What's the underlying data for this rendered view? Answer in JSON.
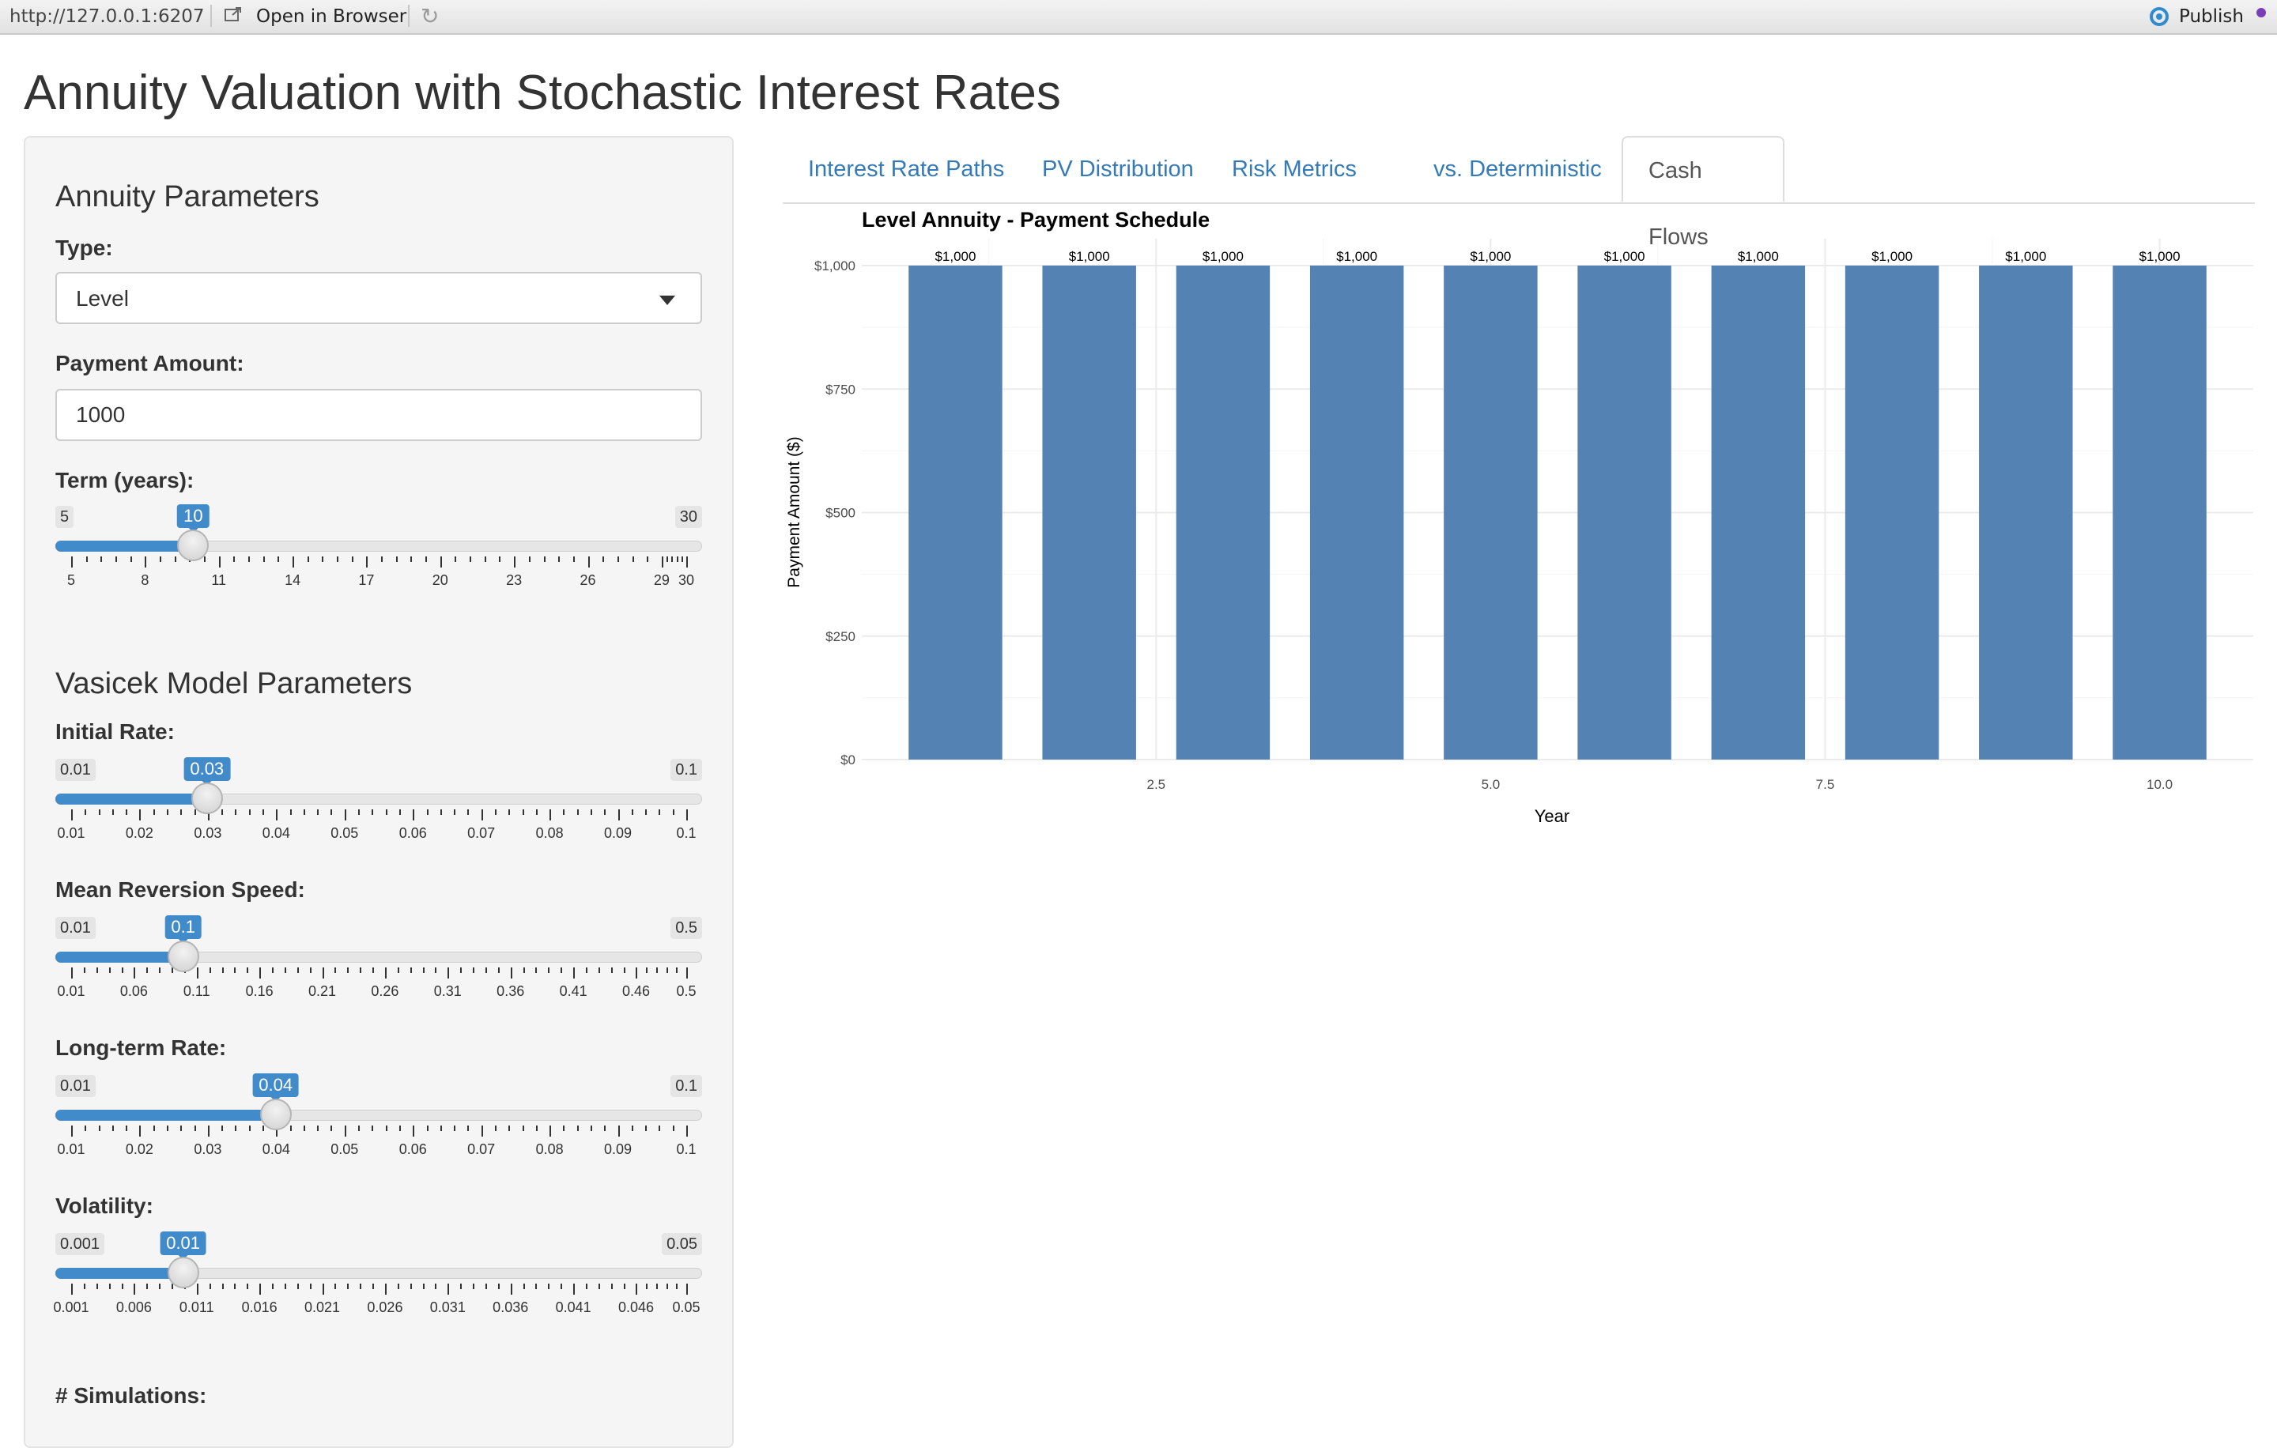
{
  "topbar": {
    "url": "http://127.0.0.1:6207",
    "open_in_browser": "Open in Browser",
    "publish": "Publish"
  },
  "page_title": "Annuity Valuation with Stochastic Interest Rates",
  "sidebar": {
    "annuity_section": "Annuity Parameters",
    "type_label": "Type:",
    "type_value": "Level",
    "payment_label": "Payment Amount:",
    "payment_value": "1000",
    "term": {
      "label": "Term (years):",
      "min": 5,
      "max": 30,
      "value": 10,
      "min_label": "5",
      "max_label": "30",
      "value_label": "10",
      "ticks": [
        "5",
        "8",
        "11",
        "14",
        "17",
        "20",
        "23",
        "26",
        "29",
        "30"
      ]
    },
    "vasicek_section": "Vasicek Model Parameters",
    "initial_rate": {
      "label": "Initial Rate:",
      "min": 0.01,
      "max": 0.1,
      "value": 0.03,
      "min_label": "0.01",
      "max_label": "0.1",
      "value_label": "0.03",
      "ticks": [
        "0.01",
        "0.02",
        "0.03",
        "0.04",
        "0.05",
        "0.06",
        "0.07",
        "0.08",
        "0.09",
        "0.1"
      ]
    },
    "mean_reversion": {
      "label": "Mean Reversion Speed:",
      "min": 0.01,
      "max": 0.5,
      "value": 0.1,
      "min_label": "0.01",
      "max_label": "0.5",
      "value_label": "0.1",
      "ticks": [
        "0.01",
        "0.06",
        "0.11",
        "0.16",
        "0.21",
        "0.26",
        "0.31",
        "0.36",
        "0.41",
        "0.46",
        "0.5"
      ]
    },
    "long_term_rate": {
      "label": "Long-term Rate:",
      "min": 0.01,
      "max": 0.1,
      "value": 0.04,
      "min_label": "0.01",
      "max_label": "0.1",
      "value_label": "0.04",
      "ticks": [
        "0.01",
        "0.02",
        "0.03",
        "0.04",
        "0.05",
        "0.06",
        "0.07",
        "0.08",
        "0.09",
        "0.1"
      ]
    },
    "volatility": {
      "label": "Volatility:",
      "min": 0.001,
      "max": 0.05,
      "value": 0.01,
      "min_label": "0.001",
      "max_label": "0.05",
      "value_label": "0.01",
      "ticks": [
        "0.001",
        "0.006",
        "0.011",
        "0.016",
        "0.021",
        "0.026",
        "0.031",
        "0.036",
        "0.041",
        "0.046",
        "0.05"
      ]
    },
    "simulations_label": "# Simulations:"
  },
  "tabs": [
    {
      "label": "Interest Rate Paths",
      "active": false
    },
    {
      "label": "PV Distribution",
      "active": false
    },
    {
      "label": "Risk Metrics",
      "active": false
    },
    {
      "label": "vs. Deterministic",
      "active": false
    },
    {
      "label": "Cash Flows",
      "active": true
    }
  ],
  "colors": {
    "accent": "#428bca",
    "bar": "#5482b3",
    "link": "#337ab7"
  },
  "chart_data": {
    "type": "bar",
    "title": "Level Annuity - Payment Schedule",
    "xlabel": "Year",
    "ylabel": "Payment Amount ($)",
    "x": [
      1,
      2,
      3,
      4,
      5,
      6,
      7,
      8,
      9,
      10
    ],
    "values": [
      1000,
      1000,
      1000,
      1000,
      1000,
      1000,
      1000,
      1000,
      1000,
      1000
    ],
    "data_labels": [
      "$1,000",
      "$1,000",
      "$1,000",
      "$1,000",
      "$1,000",
      "$1,000",
      "$1,000",
      "$1,000",
      "$1,000",
      "$1,000"
    ],
    "xlim": [
      0.3,
      10.7
    ],
    "ylim": [
      0,
      1000
    ],
    "x_ticks": [
      2.5,
      5.0,
      7.5,
      10.0
    ],
    "x_tick_labels": [
      "2.5",
      "5.0",
      "7.5",
      "10.0"
    ],
    "y_ticks": [
      0,
      250,
      500,
      750,
      1000
    ],
    "y_tick_labels": [
      "$0",
      "$250",
      "$500",
      "$750",
      "$1,000"
    ],
    "grid": true
  }
}
